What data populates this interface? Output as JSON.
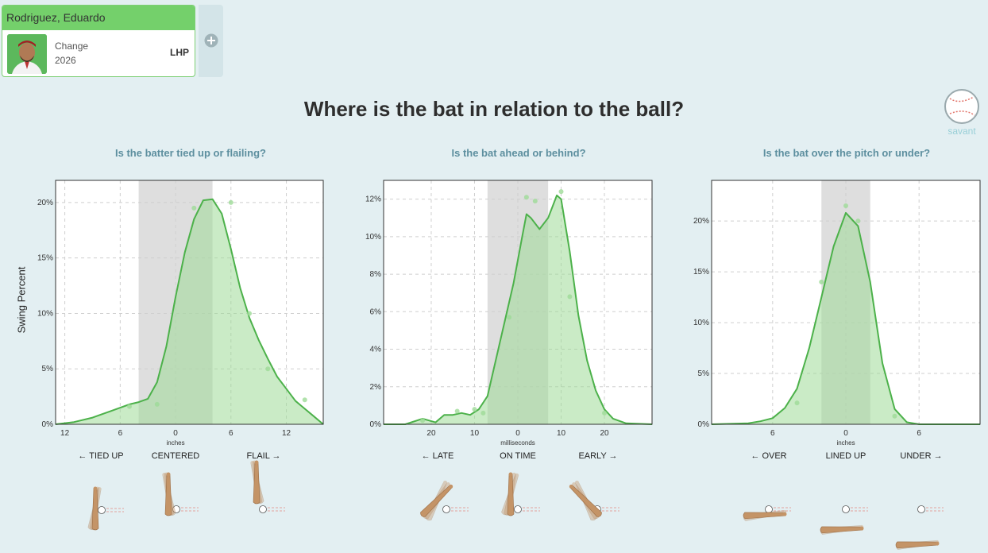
{
  "player": {
    "name": "Rodriguez, Eduardo",
    "pitch": "Change",
    "season": "2026",
    "hand": "LHP"
  },
  "page": {
    "title": "Where is the bat in relation to the ball?",
    "logo_text": "savant"
  },
  "colors": {
    "line": "#4cb14a",
    "fill": "#9edb97",
    "band": "#c8c8c8",
    "header": "#74d06b",
    "subtitle": "#5d8f9f"
  },
  "icons": [
    "plus-circle-icon",
    "baseball-logo-icon",
    "bat-icon"
  ],
  "chart_data": [
    {
      "type": "area",
      "title": "Is the batter tied up or flailing?",
      "xlabel": "inches",
      "ylabel": "Swing Percent",
      "xlim": [
        -13,
        16
      ],
      "ylim": [
        0,
        22
      ],
      "xticks": [
        -12,
        -6,
        0,
        6,
        12
      ],
      "xtick_labels": [
        "12",
        "6",
        "0",
        "6",
        "12"
      ],
      "yticks": [
        0,
        5,
        10,
        15,
        20
      ],
      "ytick_labels": [
        "0%",
        "5%",
        "10%",
        "15%",
        "20%"
      ],
      "band": [
        -4,
        4
      ],
      "x": [
        -13,
        -11,
        -9,
        -7,
        -5,
        -4,
        -3,
        -2,
        -1,
        0,
        1,
        2,
        3,
        4,
        5,
        6,
        7,
        8,
        9,
        10,
        11,
        12,
        13,
        14,
        15,
        16
      ],
      "y": [
        0,
        0.2,
        0.6,
        1.2,
        1.8,
        2.0,
        2.3,
        3.8,
        7.0,
        11.5,
        15.5,
        18.5,
        20.2,
        20.3,
        19.0,
        15.8,
        12.3,
        9.6,
        7.6,
        5.9,
        4.3,
        3.2,
        2.1,
        1.4,
        0.7,
        0
      ],
      "points": [
        [
          -5,
          1.6
        ],
        [
          -2,
          1.8
        ],
        [
          2,
          19.5
        ],
        [
          6,
          20
        ],
        [
          8,
          10
        ],
        [
          10,
          5
        ],
        [
          14,
          2.2
        ]
      ],
      "categories": [
        "← TIED UP",
        "CENTERED",
        "FLAIL →"
      ]
    },
    {
      "type": "area",
      "title": "Is the bat ahead or behind?",
      "xlabel": "milliseconds",
      "ylabel": "",
      "xlim": [
        -31,
        31
      ],
      "ylim": [
        0,
        13
      ],
      "xticks": [
        -20,
        -10,
        0,
        10,
        20
      ],
      "xtick_labels": [
        "20",
        "10",
        "0",
        "10",
        "20"
      ],
      "yticks": [
        0,
        2,
        4,
        6,
        8,
        10,
        12
      ],
      "ytick_labels": [
        "0%",
        "2%",
        "4%",
        "6%",
        "8%",
        "10%",
        "12%"
      ],
      "band": [
        -7,
        7
      ],
      "x": [
        -31,
        -26,
        -22,
        -19,
        -17,
        -15,
        -13,
        -11,
        -9,
        -7,
        -5,
        -3,
        -1,
        1,
        2,
        3,
        5,
        7,
        9,
        10,
        12,
        14,
        16,
        18,
        20,
        22,
        25,
        31
      ],
      "y": [
        0,
        0,
        0.3,
        0.1,
        0.5,
        0.5,
        0.6,
        0.5,
        0.8,
        1.5,
        3.5,
        5.5,
        7.5,
        10.0,
        11.2,
        11.0,
        10.4,
        11.0,
        12.2,
        12.0,
        9.2,
        5.8,
        3.4,
        1.8,
        0.8,
        0.3,
        0.05,
        0
      ],
      "points": [
        [
          -22,
          0.2
        ],
        [
          -14,
          0.7
        ],
        [
          -10,
          0.8
        ],
        [
          -8,
          0.6
        ],
        [
          -2,
          5.7
        ],
        [
          2,
          12.1
        ],
        [
          4,
          11.9
        ],
        [
          10,
          12.4
        ],
        [
          12,
          6.8
        ],
        [
          20,
          0.6
        ]
      ],
      "categories": [
        "← LATE",
        "ON TIME",
        "EARLY →"
      ]
    },
    {
      "type": "area",
      "title": "Is the bat over the pitch or under?",
      "xlabel": "inches",
      "ylabel": "",
      "xlim": [
        -11,
        11
      ],
      "ylim": [
        0,
        24
      ],
      "xticks": [
        -6,
        0,
        6
      ],
      "xtick_labels": [
        "6",
        "0",
        "6"
      ],
      "yticks": [
        0,
        5,
        10,
        15,
        20
      ],
      "ytick_labels": [
        "0%",
        "5%",
        "10%",
        "15%",
        "20%"
      ],
      "band": [
        -2,
        2
      ],
      "x": [
        -11,
        -8,
        -7,
        -6,
        -5,
        -4,
        -3,
        -2,
        -1,
        0,
        1,
        2,
        3,
        4,
        5,
        6,
        11
      ],
      "y": [
        0,
        0.1,
        0.3,
        0.6,
        1.6,
        3.5,
        7.5,
        12.5,
        17.5,
        20.8,
        19.5,
        14.0,
        6.0,
        1.5,
        0.2,
        0,
        0
      ],
      "points": [
        [
          -4,
          2.1
        ],
        [
          -2,
          14
        ],
        [
          0,
          21.5
        ],
        [
          1,
          20
        ],
        [
          4,
          0.8
        ]
      ],
      "categories": [
        "← OVER",
        "LINED UP",
        "UNDER →"
      ]
    }
  ]
}
